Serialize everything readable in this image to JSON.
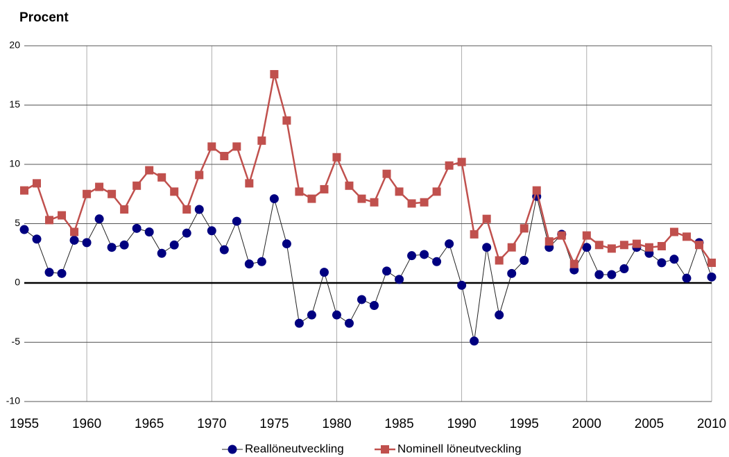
{
  "chart_data": {
    "type": "line",
    "y_label": "Procent",
    "x": [
      1955,
      1956,
      1957,
      1958,
      1959,
      1960,
      1961,
      1962,
      1963,
      1964,
      1965,
      1966,
      1967,
      1968,
      1969,
      1970,
      1971,
      1972,
      1973,
      1974,
      1975,
      1976,
      1977,
      1978,
      1979,
      1980,
      1981,
      1982,
      1983,
      1984,
      1985,
      1986,
      1987,
      1988,
      1989,
      1990,
      1991,
      1992,
      1993,
      1994,
      1995,
      1996,
      1997,
      1998,
      1999,
      2000,
      2001,
      2002,
      2003,
      2004,
      2005,
      2006,
      2007,
      2008,
      2009,
      2010
    ],
    "series": [
      {
        "name": "Reallöneutveckling",
        "color": "#000080",
        "line_color": "#222222",
        "marker": "circle",
        "values": [
          4.5,
          3.7,
          0.9,
          0.8,
          3.6,
          3.4,
          5.4,
          3.0,
          3.2,
          4.6,
          4.3,
          2.5,
          3.2,
          4.2,
          6.2,
          4.4,
          2.8,
          5.2,
          1.6,
          1.8,
          7.1,
          3.3,
          -3.4,
          -2.7,
          0.9,
          -2.7,
          -3.4,
          -1.4,
          -1.9,
          1.0,
          0.3,
          2.3,
          2.4,
          1.8,
          3.3,
          -0.2,
          -4.9,
          3.0,
          -2.7,
          0.8,
          1.9,
          7.3,
          3.0,
          4.1,
          1.1,
          3.0,
          0.7,
          0.7,
          1.2,
          3.0,
          2.5,
          1.7,
          2.0,
          0.4,
          3.4,
          0.5
        ]
      },
      {
        "name": "Nominell löneutveckling",
        "color": "#c0504d",
        "line_color": "#c0504d",
        "marker": "square",
        "values": [
          7.8,
          8.4,
          5.3,
          5.7,
          4.3,
          7.5,
          8.1,
          7.5,
          6.2,
          8.2,
          9.5,
          8.9,
          7.7,
          6.2,
          9.1,
          11.5,
          10.7,
          11.5,
          8.4,
          12.0,
          17.6,
          13.7,
          7.7,
          7.1,
          7.9,
          10.6,
          8.2,
          7.1,
          6.8,
          9.2,
          7.7,
          6.7,
          6.8,
          7.7,
          9.9,
          10.2,
          4.1,
          5.4,
          1.9,
          3.0,
          4.6,
          7.8,
          3.5,
          4.0,
          1.6,
          4.0,
          3.2,
          2.9,
          3.2,
          3.3,
          3.0,
          3.1,
          4.3,
          3.9,
          3.2,
          1.7
        ]
      }
    ],
    "xlim": [
      1955,
      2010
    ],
    "xticks": [
      1955,
      1960,
      1965,
      1970,
      1975,
      1980,
      1985,
      1990,
      1995,
      2000,
      2005,
      2010
    ],
    "ylim": [
      -10,
      20
    ],
    "yticks": [
      -10,
      -5,
      0,
      5,
      10,
      15,
      20
    ],
    "grid": true,
    "legend": "bottom"
  }
}
